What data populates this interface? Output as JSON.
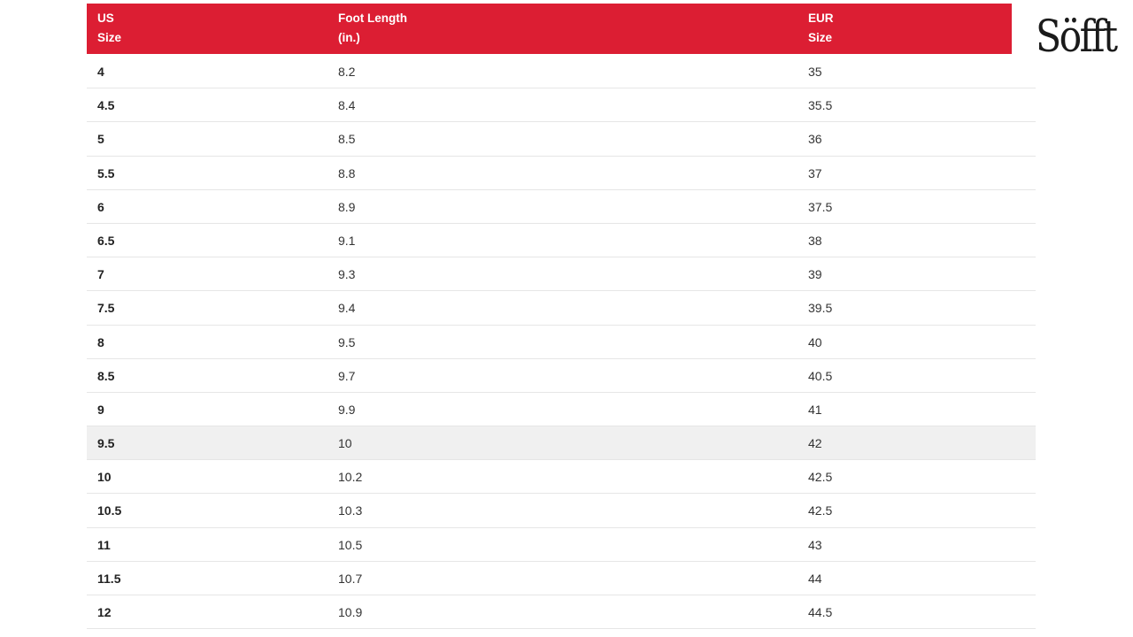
{
  "brand": {
    "logo_text": "Söfft"
  },
  "table": {
    "headers": [
      [
        "US",
        "Size"
      ],
      [
        "Foot Length",
        "(in.)"
      ],
      [
        "EUR",
        "Size"
      ]
    ],
    "rows": [
      [
        "4",
        "8.2",
        "35"
      ],
      [
        "4.5",
        "8.4",
        "35.5"
      ],
      [
        "5",
        "8.5",
        "36"
      ],
      [
        "5.5",
        "8.8",
        "37"
      ],
      [
        "6",
        "8.9",
        "37.5"
      ],
      [
        "6.5",
        "9.1",
        "38"
      ],
      [
        "7",
        "9.3",
        "39"
      ],
      [
        "7.5",
        "9.4",
        "39.5"
      ],
      [
        "8",
        "9.5",
        "40"
      ],
      [
        "8.5",
        "9.7",
        "40.5"
      ],
      [
        "9",
        "9.9",
        "41"
      ],
      [
        "9.5",
        "10",
        "42"
      ],
      [
        "10",
        "10.2",
        "42.5"
      ],
      [
        "10.5",
        "10.3",
        "42.5"
      ],
      [
        "11",
        "10.5",
        "43"
      ],
      [
        "11.5",
        "10.7",
        "44"
      ],
      [
        "12",
        "10.9",
        "44.5"
      ]
    ],
    "highlighted_row": "9.5",
    "header_color": "#dc1e33"
  }
}
